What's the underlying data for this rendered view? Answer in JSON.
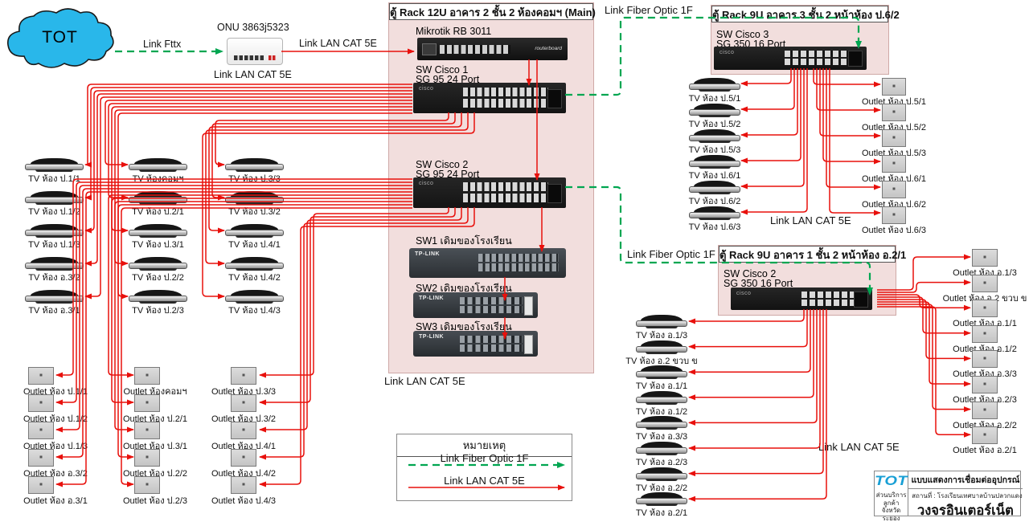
{
  "colors": {
    "lan_red": "#e8100c",
    "fiber_green": "#00a651",
    "rack_pink": "#f2dedd",
    "cloud_blue": "#29b7ea"
  },
  "cloud": {
    "label": "TOT"
  },
  "onu": {
    "label": "ONU 3863j5323"
  },
  "link_labels": {
    "fttx": "Link Fttx",
    "onu_lan": "Link LAN CAT 5E",
    "left_bundle": "Link LAN CAT 5E",
    "fiber_top": "Link Fiber Optic 1F",
    "fiber_mid": "Link Fiber Optic 1F",
    "main_bottom": "Link LAN CAT 5E",
    "top_right": "Link LAN CAT 5E",
    "bottom_right": "Link LAN CAT 5E"
  },
  "racks": {
    "main": {
      "title": "ตู้ Rack 12U อาคาร 2 ชั้น 2 ห้องคอมฯ (Main)",
      "mikrotik": {
        "label": "Mikrotik RB 3011",
        "brand": "routerboard"
      },
      "cisco1": {
        "line1": "SW Cisco 1",
        "line2": "SG 95 24 Port",
        "brand": "cisco"
      },
      "cisco2": {
        "line1": "SW Cisco 2",
        "line2": "SG 95 24 Port",
        "brand": "cisco"
      },
      "sw1": {
        "label": "SW1 เดิมของโรงเรียน",
        "brand": "TP-LINK"
      },
      "sw2": {
        "label": "SW2 เดิมของโรงเรียน",
        "brand": "TP-LINK"
      },
      "sw3": {
        "label": "SW3 เดิมของโรงเรียน",
        "brand": "TP-LINK"
      }
    },
    "top_right": {
      "title": "ตู้ Rack 9U อาคาร 3 ชั้น 2 หน้าห้อง ป.6/2",
      "sw": {
        "line1": "SW Cisco 3",
        "line2": "SG 350 16 Port",
        "brand": "cisco"
      }
    },
    "mid_right": {
      "title": "ตู้ Rack 9U อาคาร 1 ชั้น 2 หน้าห้อง อ.2/1",
      "sw": {
        "line1": "SW Cisco 2",
        "line2": "SG 350 16 Port",
        "brand": "cisco"
      }
    }
  },
  "left_tvs": {
    "col1": [
      "TV ห้อง ป.1/1",
      "TV ห้อง ป.1/2",
      "TV ห้อง ป.1/3",
      "TV ห้อง อ.3/2",
      "TV ห้อง อ.3/1"
    ],
    "col2": [
      "TV ห้องคอมฯ",
      "TV ห้อง ป.2/1",
      "TV ห้อง ป.3/1",
      "TV ห้อง ป.2/2",
      "TV ห้อง ป.2/3"
    ],
    "col3": [
      "TV ห้อง ป.3/3",
      "TV ห้อง ป.3/2",
      "TV ห้อง ป.4/1",
      "TV ห้อง ป.4/2",
      "TV ห้อง ป.4/3"
    ]
  },
  "left_outlets": {
    "col1": [
      "Outlet ห้อง ป.1/1",
      "Outlet ห้อง ป.1/2",
      "Outlet ห้อง ป.1/3",
      "Outlet ห้อง อ.3/2",
      "Outlet ห้อง อ.3/1"
    ],
    "col2": [
      "Outlet ห้องคอมฯ",
      "Outlet ห้อง ป.2/1",
      "Outlet ห้อง ป.3/1",
      "Outlet ห้อง ป.2/2",
      "Outlet ห้อง ป.2/3"
    ],
    "col3": [
      "Outlet ห้อง ป.3/3",
      "Outlet ห้อง ป.3/2",
      "Outlet ห้อง ป.4/1",
      "Outlet ห้อง ป.4/2",
      "Outlet ห้อง ป.4/3"
    ]
  },
  "tr_tvs": [
    "TV ห้อง ป.5/1",
    "TV ห้อง ป.5/2",
    "TV ห้อง ป.5/3",
    "TV ห้อง ป.6/1",
    "TV ห้อง ป.6/2",
    "TV ห้อง ป.6/3"
  ],
  "tr_outlets": [
    "Outlet ห้อง ป.5/1",
    "Outlet ห้อง ป.5/2",
    "Outlet ห้อง ป.5/3",
    "Outlet ห้อง ป.6/1",
    "Outlet ห้อง ป.6/2",
    "Outlet ห้อง ป.6/3"
  ],
  "br_tvs": [
    "TV ห้อง อ.1/3",
    "TV ห้อง อ.2 ขวบ ข",
    "TV ห้อง อ.1/1",
    "TV ห้อง อ.1/2",
    "TV ห้อง อ.3/3",
    "TV ห้อง อ.2/3",
    "TV ห้อง อ.2/2",
    "TV ห้อง อ.2/1"
  ],
  "br_outlets": [
    "Outlet ห้อง อ.1/3",
    "Outlet ห้อง อ.2 ขวบ ข",
    "Outlet ห้อง อ.1/1",
    "Outlet ห้อง อ.1/2",
    "Outlet ห้อง อ.3/3",
    "Outlet ห้อง อ.2/3",
    "Outlet ห้อง อ.2/2",
    "Outlet ห้อง อ.2/1"
  ],
  "legend": {
    "title": "หมายเหตุ",
    "fiber": "Link Fiber Optic 1F",
    "lan": "Link LAN CAT 5E"
  },
  "title_block": {
    "logo": "TOT",
    "dept1": "ส่วนบริการลูกค้า",
    "dept2": "จังหวัดระยอง",
    "doc_title": "แบบแสดงการเชื่อมต่ออุปกรณ์",
    "location": "สถานที่ : โรงเรียนเทศบาลบ้านปลวกแดง",
    "circuit": "วงจรอินเตอร์เน็ต"
  }
}
